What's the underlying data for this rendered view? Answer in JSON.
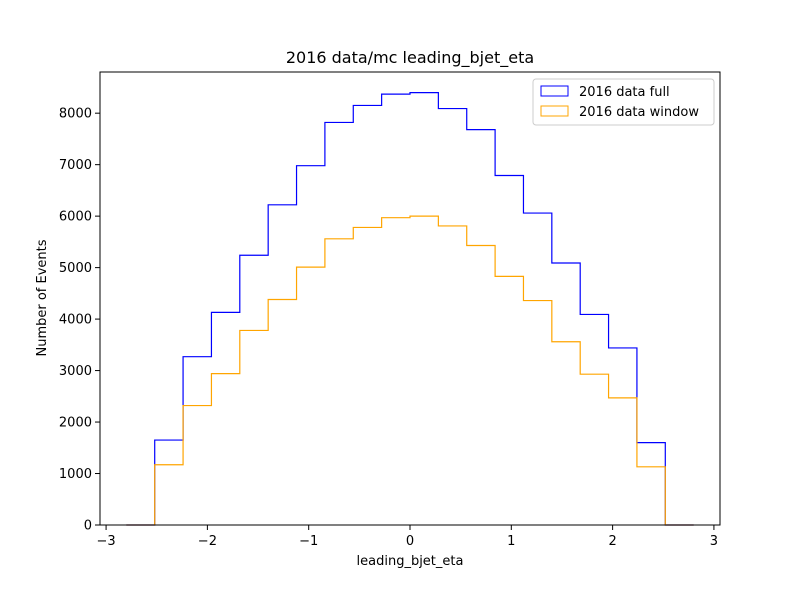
{
  "chart_data": {
    "type": "histogram-step",
    "title": "2016 data/mc leading_bjet_eta",
    "xlabel": "leading_bjet_eta",
    "ylabel": "Number of Events",
    "xlim": [
      -3.06,
      3.06
    ],
    "ylim": [
      0,
      8800
    ],
    "xticks": [
      -3,
      -2,
      -1,
      0,
      1,
      2,
      3
    ],
    "yticks": [
      0,
      1000,
      2000,
      3000,
      4000,
      5000,
      6000,
      7000,
      8000
    ],
    "legend_position": "top-right",
    "bin_edges": [
      -2.8,
      -2.52,
      -2.24,
      -1.96,
      -1.68,
      -1.4,
      -1.12,
      -0.84,
      -0.56,
      -0.28,
      0.0,
      0.28,
      0.56,
      0.84,
      1.12,
      1.4,
      1.68,
      1.96,
      2.24,
      2.52,
      2.8
    ],
    "series": [
      {
        "name": "2016 data full",
        "color": "#0000ff",
        "values": [
          0,
          1650,
          3270,
          4130,
          5240,
          6220,
          6980,
          7820,
          8150,
          8370,
          8400,
          8090,
          7680,
          6790,
          6060,
          5090,
          4090,
          3440,
          1600,
          0
        ]
      },
      {
        "name": "2016 data window",
        "color": "#ffa500",
        "values": [
          0,
          1170,
          2320,
          2940,
          3780,
          4380,
          5010,
          5560,
          5780,
          5970,
          6000,
          5810,
          5430,
          4830,
          4360,
          3560,
          2930,
          2470,
          1130,
          0
        ]
      }
    ]
  }
}
